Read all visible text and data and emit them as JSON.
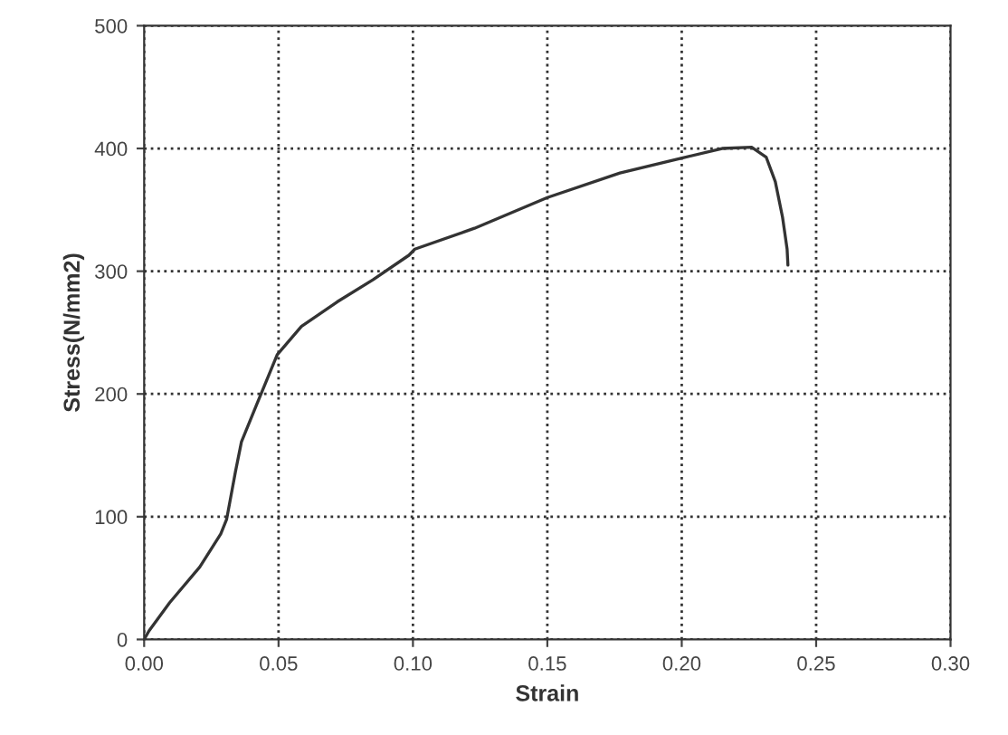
{
  "chart_data": {
    "type": "line",
    "xlabel": "Strain",
    "ylabel": "Stress(N/mm2)",
    "x": [
      0.0,
      0.0018,
      0.0095,
      0.0207,
      0.0285,
      0.0307,
      0.034,
      0.0362,
      0.0418,
      0.0495,
      0.0585,
      0.0718,
      0.0851,
      0.0985,
      0.1007,
      0.1229,
      0.15,
      0.177,
      0.1997,
      0.215,
      0.226,
      0.2314,
      0.2348,
      0.2375,
      0.2392,
      0.2395
    ],
    "series": [
      {
        "color": "#333333",
        "values": [
          0,
          7,
          30,
          59,
          86,
          98,
          137,
          161,
          191,
          232,
          255,
          275,
          293,
          313,
          318,
          335,
          360,
          380,
          392,
          400,
          401,
          393,
          373,
          344,
          318,
          305
        ]
      }
    ],
    "xlim": [
      0,
      0.3
    ],
    "ylim": [
      0,
      500
    ],
    "xticks": [
      {
        "value": 0,
        "label": "0.00"
      },
      {
        "value": 0.05,
        "label": "0.05"
      },
      {
        "value": 0.1,
        "label": "0.10"
      },
      {
        "value": 0.15,
        "label": "0.15"
      },
      {
        "value": 0.2,
        "label": "0.20"
      },
      {
        "value": 0.25,
        "label": "0.25"
      },
      {
        "value": 0.3,
        "label": "0.30"
      }
    ],
    "yticks": [
      0,
      100,
      200,
      300,
      400,
      500
    ],
    "grid": true,
    "line_style": "solid",
    "marker": "none"
  }
}
